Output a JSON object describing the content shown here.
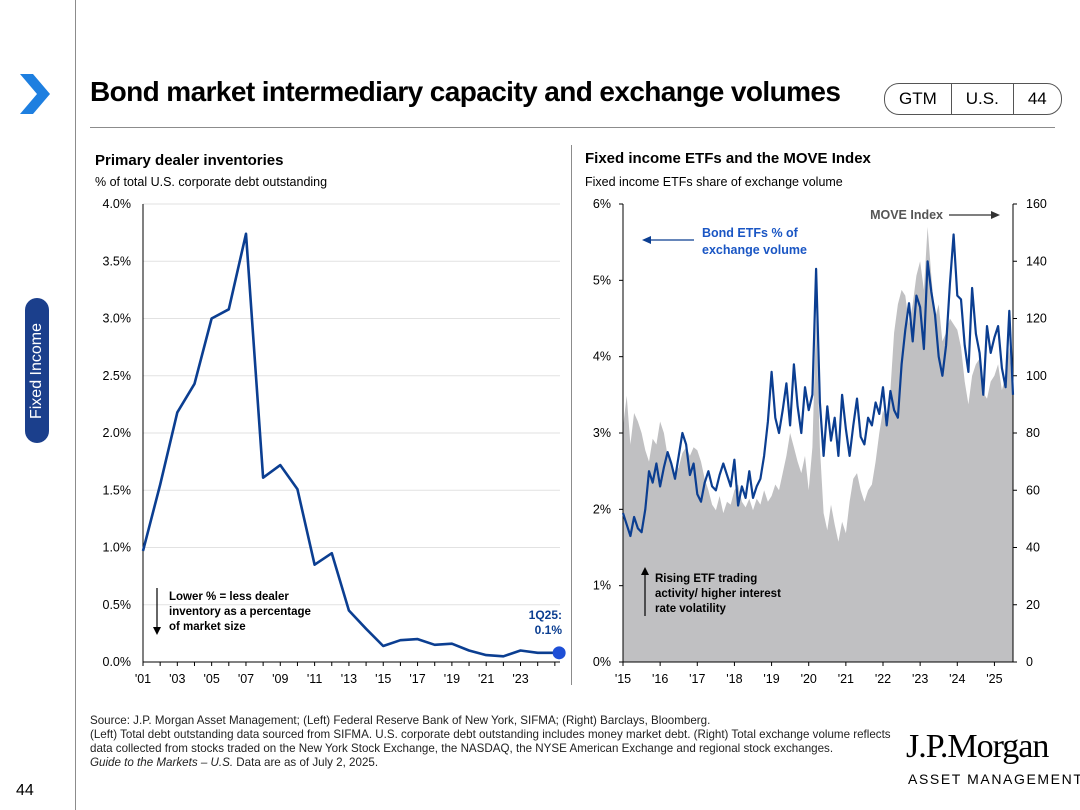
{
  "title": "Bond market intermediary capacity and exchange volumes",
  "tags": [
    "GTM",
    "U.S.",
    "44"
  ],
  "side_tab": "Fixed Income",
  "page_number": "44",
  "source": {
    "line1": "Source: J.P. Morgan Asset Management; (Left) Federal Reserve Bank of New York, SIFMA; (Right) Barclays, Bloomberg.",
    "line2": "(Left) Total debt outstanding data sourced from SIFMA. U.S. corporate debt outstanding includes money market debt. (Right) Total exchange volume reflects data collected from stocks traded on the New York Stock Exchange, the NASDAQ, the NYSE American Exchange and regional stock exchanges.",
    "guide": "Guide to the Markets – U.S.",
    "date": " Data are as of July 2, 2025."
  },
  "logo": {
    "name": "J.P.Morgan",
    "sub": "ASSET MANAGEMENT"
  },
  "colors": {
    "navy": "#0b3e91",
    "tab": "#1b3f8c",
    "chevron": "#1e7fe0",
    "gray_area": "#c0c0c2",
    "grid": "#e2e2e2"
  },
  "chart_data": [
    {
      "type": "line",
      "title": "Primary dealer inventories",
      "subtitle": "% of total U.S. corporate debt outstanding",
      "y_tick_labels": [
        "0.0%",
        "0.5%",
        "1.0%",
        "1.5%",
        "2.0%",
        "2.5%",
        "3.0%",
        "3.5%",
        "4.0%"
      ],
      "x_tick_labels": [
        "'01",
        "'03",
        "'05",
        "'07",
        "'09",
        "'11",
        "'13",
        "'15",
        "'17",
        "'19",
        "'21",
        "'23"
      ],
      "xlim": [
        2001,
        2025.3
      ],
      "ylim": [
        0,
        4
      ],
      "series": [
        {
          "name": "Primary dealer inventories",
          "x": [
            2001,
            2002,
            2003,
            2004,
            2005,
            2006,
            2007,
            2008,
            2009,
            2010,
            2011,
            2012,
            2013,
            2014,
            2015,
            2016,
            2017,
            2018,
            2019,
            2020,
            2021,
            2022,
            2023,
            2024,
            2025.25
          ],
          "values": [
            0.97,
            1.55,
            2.18,
            2.43,
            3.0,
            3.08,
            3.74,
            1.61,
            1.72,
            1.51,
            0.85,
            0.95,
            0.45,
            0.29,
            0.14,
            0.19,
            0.2,
            0.15,
            0.16,
            0.1,
            0.06,
            0.05,
            0.1,
            0.08,
            0.08
          ]
        }
      ],
      "annotations": {
        "arrow_note": [
          "Lower % = less dealer",
          "inventory as a percentage",
          "of market size"
        ],
        "end_label": [
          "1Q25:",
          "0.1%"
        ]
      }
    },
    {
      "type": "line",
      "title": "Fixed income ETFs and the MOVE Index",
      "subtitle": "Fixed income ETFs share of exchange volume",
      "y_left_tick_labels": [
        "0%",
        "1%",
        "2%",
        "3%",
        "4%",
        "5%",
        "6%"
      ],
      "y_right_tick_labels": [
        "0",
        "20",
        "40",
        "60",
        "80",
        "100",
        "120",
        "140",
        "160"
      ],
      "x_tick_labels": [
        "'15",
        "'16",
        "'17",
        "'18",
        "'19",
        "'20",
        "'21",
        "'22",
        "'23",
        "'24",
        "'25"
      ],
      "xlim": [
        2015,
        2025.5
      ],
      "ylim_left": [
        0,
        6
      ],
      "ylim_right": [
        0,
        160
      ],
      "series": [
        {
          "name": "Bond ETFs % of exchange volume",
          "axis": "left",
          "x": [
            2015.0,
            2015.1,
            2015.2,
            2015.3,
            2015.4,
            2015.5,
            2015.6,
            2015.7,
            2015.8,
            2015.9,
            2016.0,
            2016.1,
            2016.2,
            2016.3,
            2016.4,
            2016.5,
            2016.6,
            2016.7,
            2016.8,
            2016.9,
            2017.0,
            2017.1,
            2017.2,
            2017.3,
            2017.4,
            2017.5,
            2017.6,
            2017.7,
            2017.8,
            2017.9,
            2018.0,
            2018.1,
            2018.2,
            2018.3,
            2018.4,
            2018.5,
            2018.6,
            2018.7,
            2018.8,
            2018.9,
            2019.0,
            2019.1,
            2019.2,
            2019.3,
            2019.4,
            2019.5,
            2019.6,
            2019.7,
            2019.8,
            2019.9,
            2020.0,
            2020.1,
            2020.2,
            2020.3,
            2020.4,
            2020.5,
            2020.6,
            2020.7,
            2020.8,
            2020.9,
            2021.0,
            2021.1,
            2021.2,
            2021.3,
            2021.4,
            2021.5,
            2021.6,
            2021.7,
            2021.8,
            2021.9,
            2022.0,
            2022.1,
            2022.2,
            2022.3,
            2022.4,
            2022.5,
            2022.6,
            2022.7,
            2022.8,
            2022.9,
            2023.0,
            2023.1,
            2023.2,
            2023.3,
            2023.4,
            2023.5,
            2023.6,
            2023.7,
            2023.8,
            2023.9,
            2024.0,
            2024.1,
            2024.2,
            2024.3,
            2024.4,
            2024.5,
            2024.6,
            2024.7,
            2024.8,
            2024.9,
            2025.0,
            2025.1,
            2025.2,
            2025.3,
            2025.4,
            2025.5
          ],
          "values": [
            1.95,
            1.8,
            1.65,
            1.9,
            1.75,
            1.7,
            2.0,
            2.5,
            2.35,
            2.6,
            2.3,
            2.55,
            2.75,
            2.6,
            2.4,
            2.7,
            3.0,
            2.85,
            2.45,
            2.6,
            2.2,
            2.1,
            2.35,
            2.5,
            2.3,
            2.25,
            2.45,
            2.6,
            2.45,
            2.3,
            2.65,
            2.05,
            2.3,
            2.15,
            2.5,
            2.15,
            2.3,
            2.4,
            2.7,
            3.15,
            3.8,
            3.2,
            3.0,
            3.3,
            3.65,
            3.1,
            3.9,
            3.35,
            3.0,
            3.6,
            3.3,
            3.5,
            5.15,
            3.4,
            2.7,
            3.35,
            2.9,
            3.2,
            2.7,
            3.5,
            3.05,
            2.7,
            3.1,
            3.45,
            2.95,
            2.85,
            3.2,
            3.1,
            3.4,
            3.25,
            3.6,
            3.1,
            3.55,
            3.3,
            3.2,
            3.9,
            4.35,
            4.7,
            4.2,
            4.8,
            4.65,
            4.1,
            5.25,
            4.85,
            4.55,
            4.0,
            3.75,
            4.15,
            4.95,
            5.6,
            4.8,
            4.75,
            4.15,
            3.8,
            4.9,
            4.3,
            4.05,
            3.5,
            4.4,
            4.05,
            4.25,
            4.4,
            3.85,
            3.6,
            4.6,
            3.5
          ]
        },
        {
          "name": "MOVE Index",
          "axis": "right",
          "x": [
            2015.0,
            2015.1,
            2015.2,
            2015.3,
            2015.4,
            2015.5,
            2015.6,
            2015.7,
            2015.8,
            2015.9,
            2016.0,
            2016.1,
            2016.2,
            2016.3,
            2016.4,
            2016.5,
            2016.6,
            2016.7,
            2016.8,
            2016.9,
            2017.0,
            2017.1,
            2017.2,
            2017.3,
            2017.4,
            2017.5,
            2017.6,
            2017.7,
            2017.8,
            2017.9,
            2018.0,
            2018.1,
            2018.2,
            2018.3,
            2018.4,
            2018.5,
            2018.6,
            2018.7,
            2018.8,
            2018.9,
            2019.0,
            2019.1,
            2019.2,
            2019.3,
            2019.4,
            2019.5,
            2019.6,
            2019.7,
            2019.8,
            2019.9,
            2020.0,
            2020.1,
            2020.2,
            2020.3,
            2020.4,
            2020.5,
            2020.6,
            2020.7,
            2020.8,
            2020.9,
            2021.0,
            2021.1,
            2021.2,
            2021.3,
            2021.4,
            2021.5,
            2021.6,
            2021.7,
            2021.8,
            2021.9,
            2022.0,
            2022.1,
            2022.2,
            2022.3,
            2022.4,
            2022.5,
            2022.6,
            2022.7,
            2022.8,
            2022.9,
            2023.0,
            2023.1,
            2023.2,
            2023.3,
            2023.4,
            2023.5,
            2023.6,
            2023.7,
            2023.8,
            2023.9,
            2024.0,
            2024.1,
            2024.2,
            2024.3,
            2024.4,
            2024.5,
            2024.6,
            2024.7,
            2024.8,
            2024.9,
            2025.0,
            2025.1,
            2025.2,
            2025.3,
            2025.4,
            2025.5
          ],
          "values": [
            82,
            93,
            76,
            87,
            84,
            80,
            74,
            70,
            78,
            76,
            84,
            80,
            72,
            70,
            66,
            68,
            73,
            75,
            72,
            75,
            74,
            70,
            64,
            60,
            55,
            53,
            58,
            52,
            56,
            55,
            60,
            62,
            56,
            54,
            57,
            53,
            57,
            55,
            60,
            56,
            58,
            62,
            60,
            66,
            72,
            80,
            75,
            70,
            66,
            72,
            60,
            75,
            120,
            75,
            52,
            46,
            55,
            48,
            42,
            49,
            45,
            56,
            64,
            66,
            60,
            56,
            60,
            62,
            70,
            80,
            88,
            84,
            95,
            115,
            125,
            130,
            128,
            118,
            125,
            135,
            140,
            130,
            152,
            135,
            120,
            125,
            112,
            115,
            120,
            118,
            116,
            110,
            98,
            90,
            100,
            104,
            106,
            94,
            92,
            98,
            100,
            104,
            95,
            100,
            110,
            92
          ]
        }
      ],
      "annotations": {
        "etf_label": [
          "Bond ETFs % of",
          "exchange volume"
        ],
        "move_label": "MOVE Index",
        "bottom_note": [
          "Rising ETF trading",
          "activity/ higher interest",
          "rate volatility"
        ]
      }
    }
  ]
}
